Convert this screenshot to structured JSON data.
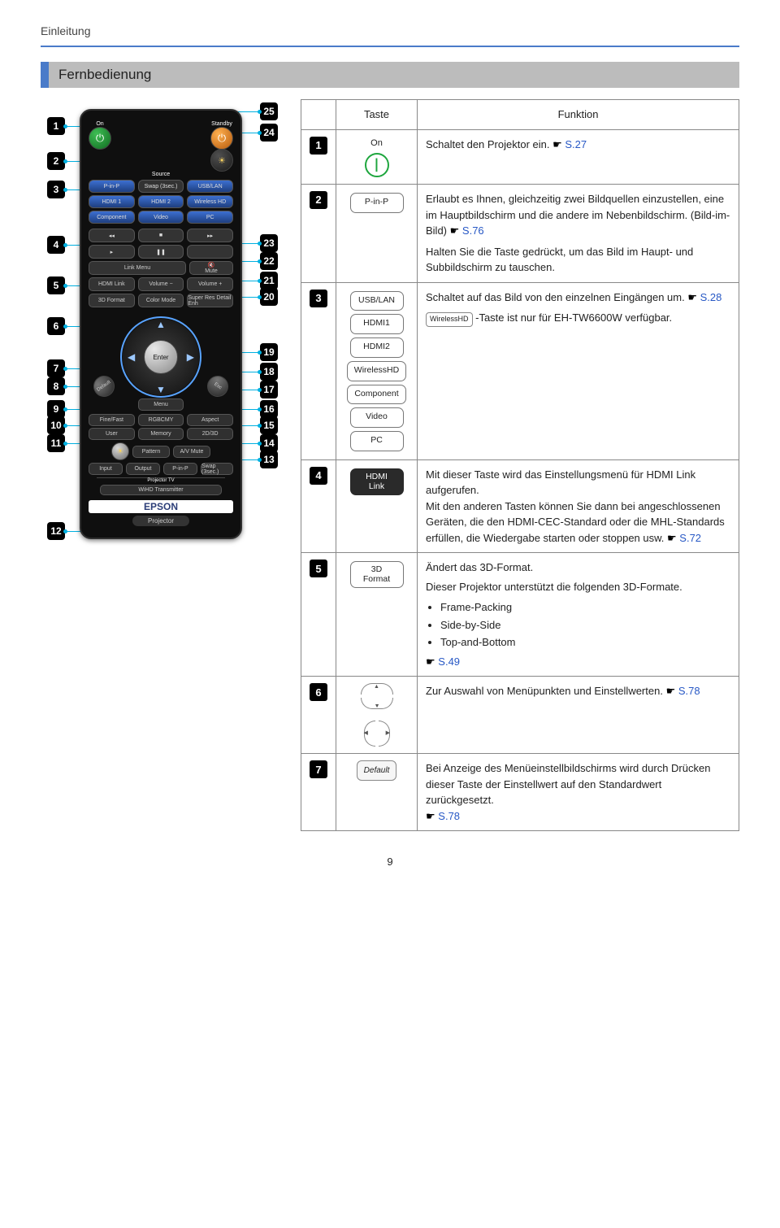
{
  "page": {
    "breadcrumb": "Einleitung",
    "section_title": "Fernbedienung",
    "page_number": "9"
  },
  "table_header": {
    "col_button": "Taste",
    "col_function": "Funktion"
  },
  "rows": {
    "r1": {
      "num": "1",
      "on_label": "On",
      "text": "Schaltet den Projektor ein. ",
      "ref": "S.27"
    },
    "r2": {
      "num": "2",
      "btn": "P-in-P",
      "p1": "Erlaubt es Ihnen, gleichzeitig zwei Bildquellen einzustellen, eine im Hauptbildschirm und die andere im Nebenbildschirm. (Bild-im-Bild) ",
      "ref1": "S.76",
      "p2": "Halten Sie die Taste gedrückt, um das Bild im Haupt- und Subbildschirm zu tauschen."
    },
    "r3": {
      "num": "3",
      "btns": [
        "USB/LAN",
        "HDMI1",
        "HDMI2",
        "WirelessHD",
        "Component",
        "Video",
        "PC"
      ],
      "p1a": "Schaltet auf das Bild von den einzelnen Eingängen um. ",
      "ref1": "S.28",
      "chip": "WirelessHD",
      "p2": " -Taste ist nur für EH-TW6600W verfügbar."
    },
    "r4": {
      "num": "4",
      "btn_line1": "HDMI",
      "btn_line2": "Link",
      "p1": "Mit dieser Taste wird das Einstellungsmenü für HDMI Link aufgerufen.",
      "p2": "Mit den anderen Tasten können Sie dann bei angeschlossenen Geräten, die den HDMI-CEC-Standard oder die MHL-Standards erfüllen, die Wiedergabe starten oder stoppen usw. ",
      "ref": "S.72"
    },
    "r5": {
      "num": "5",
      "btn_line1": "3D",
      "btn_line2": "Format",
      "p1": "Ändert das 3D-Format.",
      "p2": "Dieser Projektor unterstützt die folgenden 3D-Formate.",
      "formats": [
        "Frame-Packing",
        "Side-by-Side",
        "Top-and-Bottom"
      ],
      "ref": "S.49"
    },
    "r6": {
      "num": "6",
      "text": "Zur Auswahl von Menüpunkten und Einstellwerten. ",
      "ref": "S.78"
    },
    "r7": {
      "num": "7",
      "btn": "Default",
      "text": "Bei Anzeige des Menüeinstellbildschirms wird durch Drücken dieser Taste der Einstellwert auf den Standardwert zurückgesetzt. ",
      "ref": "S.78"
    }
  },
  "remote": {
    "on": "On",
    "standby": "Standby",
    "source": "Source",
    "pinp": "P-in-P",
    "swap": "Swap (3sec.)",
    "usblan": "USB/LAN",
    "hdmi1": "HDMI 1",
    "hdmi2": "HDMI 2",
    "wirelesshd": "Wireless HD",
    "component": "Component",
    "video": "Video",
    "pc": "PC",
    "linkmenu": "Link Menu",
    "mute": "Mute",
    "hdmilink": "HDMI Link",
    "volm": "Volume −",
    "volp": "Volume +",
    "format3d": "3D Format",
    "colormode": "Color Mode",
    "superres": "Super Res Detail Enh",
    "enter": "Enter",
    "default": "Default",
    "menu": "Menu",
    "esc": "Esc",
    "finefast": "Fine/Fast",
    "rgbcmy": "RGBCMY",
    "aspect": "Aspect",
    "user": "User",
    "memory": "Memory",
    "d2d3d": "2D/3D",
    "pattern": "Pattern",
    "avmute": "A/V Mute",
    "input": "Input",
    "output": "Output",
    "pinp2": "P-in-P",
    "swap2": "Swap (3sec.)",
    "wihd": "WiHD Transmitter",
    "projector_tv": "Projector TV",
    "epson": "EPSON",
    "projector": "Projector"
  },
  "callouts_left": {
    "1": 22,
    "2": 65,
    "3": 100,
    "4": 168,
    "5": 218,
    "6": 268,
    "7": 320,
    "8": 342,
    "9": 370,
    "10": 390,
    "11": 412,
    "12": 520
  },
  "callouts_right": {
    "25": 4,
    "24": 30,
    "23": 166,
    "22": 188,
    "21": 212,
    "20": 232,
    "19": 300,
    "18": 324,
    "17": 346,
    "16": 370,
    "15": 390,
    "14": 412,
    "13": 432
  },
  "colors": {
    "rule_blue": "#4a7bc9",
    "lead_blue": "#00b0e0",
    "link_blue": "#2758c5",
    "power_green": "#1ea63e"
  }
}
